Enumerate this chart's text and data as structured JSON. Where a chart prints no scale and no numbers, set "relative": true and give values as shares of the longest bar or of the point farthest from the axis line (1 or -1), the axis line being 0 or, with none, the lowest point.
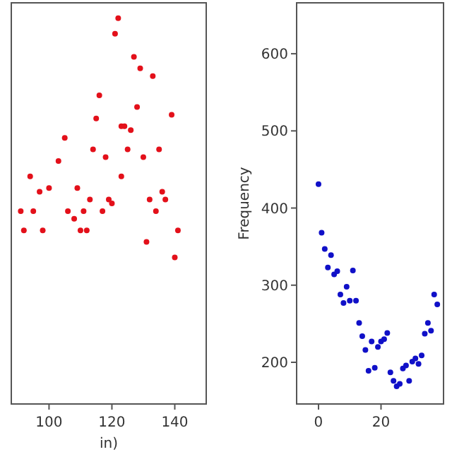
{
  "chart_data": [
    {
      "type": "scatter",
      "xlabel": "in)",
      "relative": true,
      "tick_labels": "x",
      "marker": "circle",
      "xlim": [
        88,
        150
      ],
      "xticks": [
        100,
        120,
        140
      ],
      "series": [
        {
          "color": "#e3101a",
          "x": [
            122,
            121,
            127,
            129,
            133,
            116,
            128,
            139,
            115,
            123,
            124,
            126,
            105,
            114,
            125,
            135,
            118,
            130,
            103,
            94,
            123,
            100,
            109,
            97,
            136,
            113,
            132,
            137,
            119,
            120,
            91,
            95,
            106,
            111,
            117,
            134,
            108,
            92,
            98,
            110,
            112,
            141,
            131,
            140
          ],
          "values": [
            1.0,
            0.96,
            0.9,
            0.87,
            0.85,
            0.8,
            0.77,
            0.75,
            0.74,
            0.72,
            0.72,
            0.71,
            0.69,
            0.66,
            0.66,
            0.66,
            0.64,
            0.64,
            0.63,
            0.59,
            0.59,
            0.56,
            0.56,
            0.55,
            0.55,
            0.53,
            0.53,
            0.53,
            0.53,
            0.52,
            0.5,
            0.5,
            0.5,
            0.5,
            0.5,
            0.5,
            0.48,
            0.45,
            0.45,
            0.45,
            0.45,
            0.45,
            0.42,
            0.38
          ]
        }
      ]
    },
    {
      "type": "scatter",
      "ylabel": "Frequency",
      "marker": "circle",
      "xlim": [
        -7,
        40
      ],
      "xticks": [
        0,
        20
      ],
      "ylim": [
        146,
        666
      ],
      "yticks": [
        200,
        300,
        400,
        500,
        600
      ],
      "series": [
        {
          "color": "#1010c8",
          "x": [
            0,
            1,
            2,
            3,
            4,
            5,
            6,
            7,
            8,
            9,
            10,
            11,
            12,
            13,
            14,
            15,
            16,
            17,
            18,
            19,
            20,
            21,
            22,
            23,
            24,
            25,
            26,
            27,
            28,
            29,
            30,
            31,
            32,
            33,
            34,
            35,
            36,
            37,
            38
          ],
          "values": [
            431,
            368,
            347,
            323,
            339,
            314,
            318,
            288,
            277,
            298,
            280,
            319,
            280,
            251,
            234,
            216,
            189,
            227,
            193,
            220,
            227,
            230,
            238,
            187,
            176,
            169,
            172,
            192,
            196,
            176,
            201,
            205,
            198,
            209,
            237,
            251,
            241,
            288,
            275
          ]
        }
      ]
    }
  ]
}
